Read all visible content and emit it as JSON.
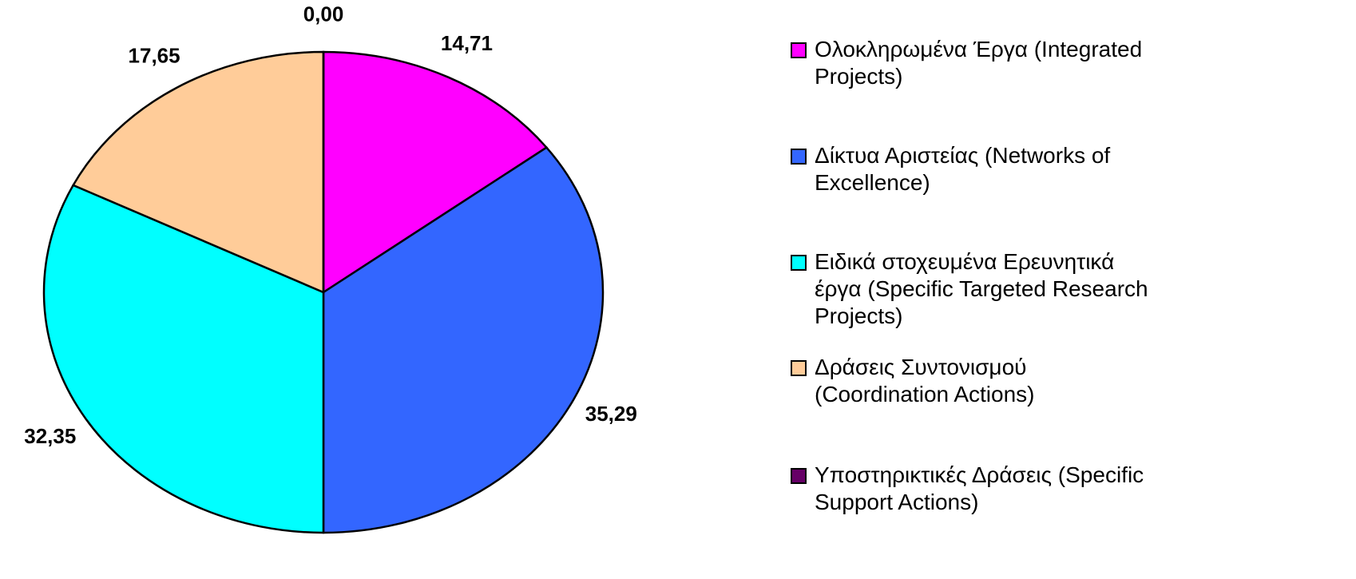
{
  "chart_data": {
    "type": "pie",
    "categories": [
      "Ολοκληρωμένα Έργα (Integrated Projects)",
      "Δίκτυα Αριστείας (Networks of Excellence)",
      "Ειδικά στοχευμένα Ερευνητικά έργα (Specific Targeted Research Projects)",
      "Δράσεις Συντονισμού (Coordination Actions)",
      "Υποστηρικτικές Δράσεις (Specific Support Actions)"
    ],
    "values": [
      14.71,
      35.29,
      32.35,
      17.65,
      0
    ],
    "value_labels": [
      "14,71",
      "35,29",
      "32,35",
      "17,65",
      "0,00"
    ],
    "colors": [
      "#ff00ff",
      "#3366ff",
      "#00ffff",
      "#ffcc99",
      "#660066"
    ],
    "legend": "right"
  }
}
